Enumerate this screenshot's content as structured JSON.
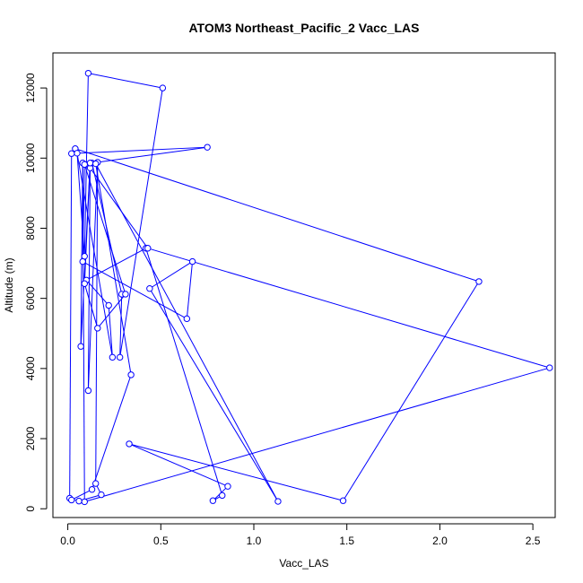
{
  "chart_data": {
    "type": "line",
    "title": "ATOM3 Northeast_Pacific_2 Vacc_LAS",
    "xlabel": "Vacc_LAS",
    "ylabel": "Altitude (m)",
    "xlim": [
      -0.08,
      2.62
    ],
    "ylim": [
      -250,
      13000
    ],
    "xticks": [
      0.0,
      0.5,
      1.0,
      1.5,
      2.0,
      2.5
    ],
    "xtick_labels": [
      "0.0",
      "0.5",
      "1.0",
      "1.5",
      "2.0",
      "2.5"
    ],
    "yticks": [
      0,
      2000,
      4000,
      6000,
      8000,
      10000,
      12000
    ],
    "ytick_labels": [
      "0",
      "2000",
      "4000",
      "6000",
      "8000",
      "10000",
      "12000"
    ],
    "grid": false,
    "series": [
      {
        "color": "#0000ff",
        "marker": "open-circle",
        "x": [
          0.04,
          2.21,
          1.48,
          0.33,
          0.86,
          0.78,
          0.83,
          0.42,
          0.1,
          0.22,
          0.24,
          0.05,
          0.09,
          0.11,
          0.51,
          0.28,
          0.29,
          0.13,
          0.75,
          0.02,
          0.01,
          0.06,
          0.18,
          0.15,
          0.16,
          0.11,
          0.12,
          0.43,
          2.59,
          0.09,
          0.08,
          0.07,
          0.12,
          0.09,
          0.16,
          0.31,
          0.09,
          0.08,
          0.64,
          0.67,
          0.44,
          1.13,
          0.15,
          0.34,
          0.13,
          0.02
        ],
        "y": [
          10270,
          6480,
          230,
          1850,
          640,
          230,
          380,
          7430,
          6520,
          5800,
          4320,
          10140,
          7200,
          12420,
          12000,
          4320,
          6120,
          9860,
          10310,
          10130,
          300,
          220,
          400,
          720,
          9880,
          3370,
          9720,
          7430,
          4020,
          200,
          9860,
          4630,
          9860,
          6420,
          5150,
          6120,
          9820,
          7050,
          5420,
          7050,
          6280,
          210,
          9840,
          3820,
          550,
          250
        ]
      }
    ]
  }
}
